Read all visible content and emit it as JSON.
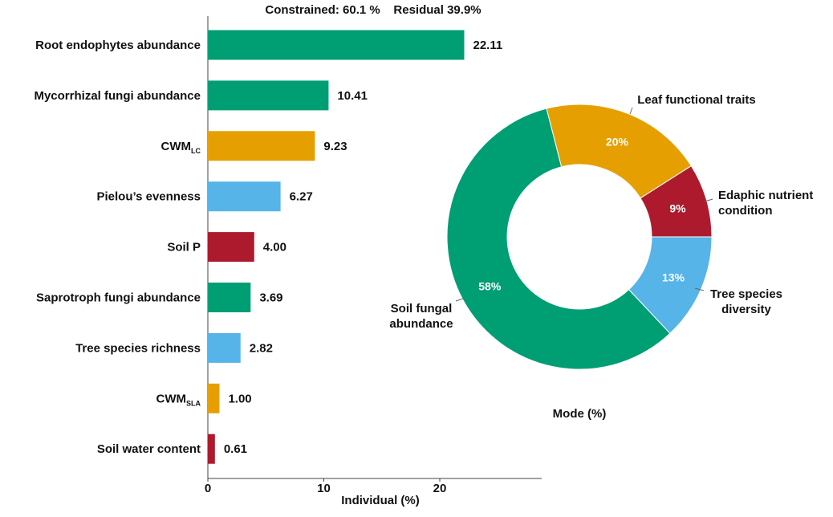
{
  "chart_data": [
    {
      "type": "bar",
      "orientation": "horizontal",
      "title": "Constrained: 60.1 %    Residual 39.9%",
      "xlabel": "Individual (%)",
      "xlim": [
        0,
        29
      ],
      "xticks": [
        "0",
        "10",
        "20"
      ],
      "xtick_values": [
        0,
        10,
        20
      ],
      "categories": [
        {
          "label": "Root endophytes abundance",
          "sub": "",
          "value": 22.11,
          "value_label": "22.11",
          "color": "#009E73"
        },
        {
          "label": "Mycorrhizal fungi abundance",
          "sub": "",
          "value": 10.41,
          "value_label": "10.41",
          "color": "#009E73"
        },
        {
          "label": "CWM",
          "sub": "LC",
          "value": 9.23,
          "value_label": "9.23",
          "color": "#E69F00"
        },
        {
          "label": "Pielou’s evenness",
          "sub": "",
          "value": 6.27,
          "value_label": "6.27",
          "color": "#56B4E9"
        },
        {
          "label": "Soil P",
          "sub": "",
          "value": 4.0,
          "value_label": "4.00",
          "color": "#AE1A2D"
        },
        {
          "label": "Saprotroph fungi abundance",
          "sub": "",
          "value": 3.69,
          "value_label": "3.69",
          "color": "#009E73"
        },
        {
          "label": "Tree species richness",
          "sub": "",
          "value": 2.82,
          "value_label": "2.82",
          "color": "#56B4E9"
        },
        {
          "label": "CWM",
          "sub": "SLA",
          "value": 1.0,
          "value_label": "1.00",
          "color": "#E69F00"
        },
        {
          "label": "Soil water content",
          "sub": "",
          "value": 0.61,
          "value_label": "0.61",
          "color": "#AE1A2D"
        }
      ]
    },
    {
      "type": "pie",
      "donut": true,
      "title": "Mode (%)",
      "slices": [
        {
          "label": [
            "Edaphic nutrient",
            "condition"
          ],
          "value": 9,
          "value_label": "9%",
          "color": "#AE1A2D"
        },
        {
          "label": [
            "Leaf functional traits"
          ],
          "value": 20,
          "value_label": "20%",
          "color": "#E69F00"
        },
        {
          "label": [
            "Soil fungal",
            "abundance"
          ],
          "value": 58,
          "value_label": "58%",
          "color": "#009E73"
        },
        {
          "label": [
            "Tree species",
            "diversity"
          ],
          "value": 13,
          "value_label": "13%",
          "color": "#56B4E9"
        }
      ]
    }
  ]
}
